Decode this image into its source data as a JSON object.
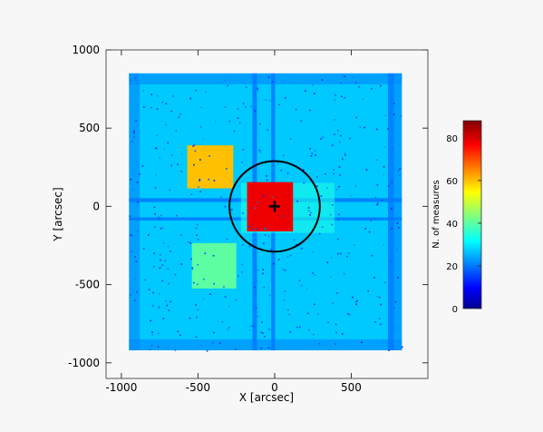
{
  "chart_data": {
    "type": "heatmap",
    "title": "",
    "xlabel": "X [arcsec]",
    "ylabel": "Y [arcsec]",
    "xlim": [
      -1100,
      1000
    ],
    "ylim": [
      -1100,
      1000
    ],
    "xticks": [
      -1000,
      -500,
      0,
      500
    ],
    "yticks": [
      -1000,
      -500,
      0,
      500,
      1000
    ],
    "field_extent": {
      "x": [
        -950,
        830
      ],
      "y": [
        -920,
        850
      ]
    },
    "base_value": 27,
    "stripes": [
      {
        "orientation": "vertical",
        "center": -130,
        "width": 30,
        "value": 20
      },
      {
        "orientation": "vertical",
        "center": -10,
        "width": 25,
        "value": 20
      },
      {
        "orientation": "vertical",
        "center": 760,
        "width": 40,
        "value": 20
      },
      {
        "orientation": "horizontal",
        "center": 40,
        "width": 25,
        "value": 20
      },
      {
        "orientation": "horizontal",
        "center": -80,
        "width": 20,
        "value": 20
      }
    ],
    "edge_band_value": 22,
    "overlap_regions": [
      {
        "name": "upper-left square",
        "x": [
          -570,
          -270
        ],
        "y": [
          115,
          390
        ],
        "value": 60
      },
      {
        "name": "lower-left square",
        "x": [
          -540,
          -250
        ],
        "y": [
          -525,
          -235
        ],
        "value": 40
      },
      {
        "name": "central square",
        "x": [
          -180,
          120
        ],
        "y": [
          -160,
          155
        ],
        "value": 78
      }
    ],
    "circle": {
      "center": [
        0,
        0
      ],
      "radius": 295
    },
    "marker": {
      "symbol": "plus",
      "at": [
        0,
        0
      ]
    },
    "colorbar": {
      "label": "N. of measures",
      "min": 0,
      "max": 88,
      "ticks": [
        0,
        20,
        40,
        60,
        80
      ],
      "colormap": "jet"
    }
  }
}
